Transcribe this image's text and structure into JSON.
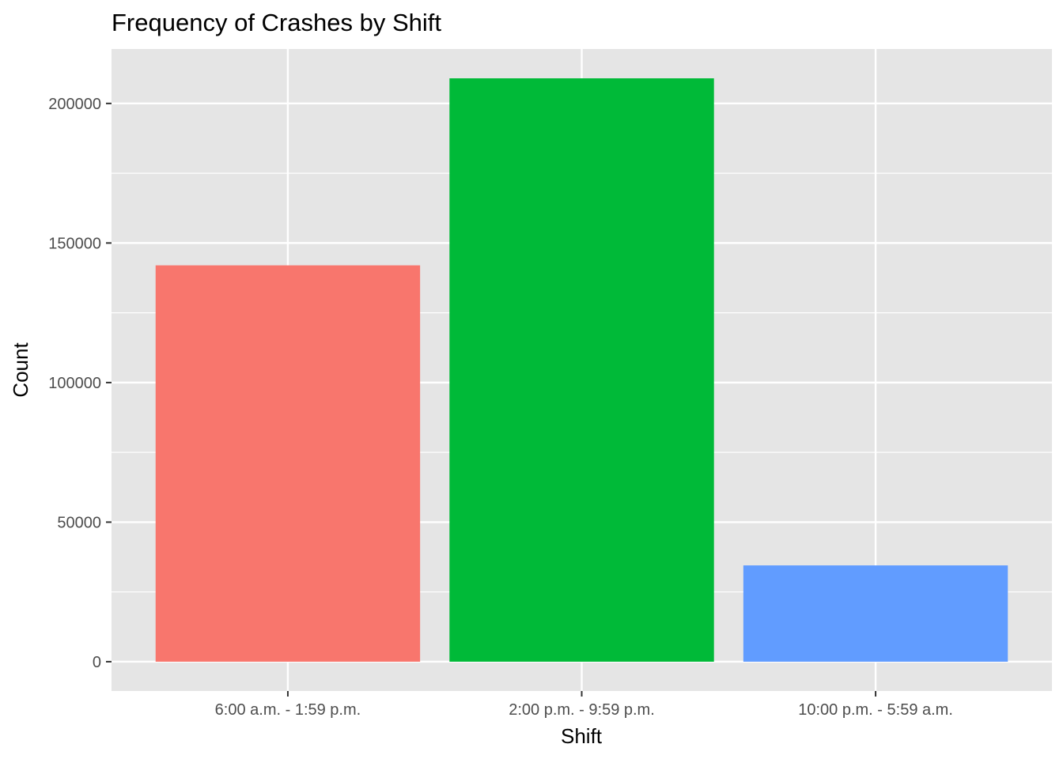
{
  "chart_data": {
    "type": "bar",
    "title": "Frequency of Crashes by Shift",
    "xlabel": "Shift",
    "ylabel": "Count",
    "categories": [
      "6:00 a.m. - 1:59 p.m.",
      "2:00 p.m. - 9:59 p.m.",
      "10:00 p.m. - 5:59 a.m."
    ],
    "values": [
      142000,
      209000,
      34500
    ],
    "colors": [
      "#F8766D",
      "#00BA38",
      "#619CFF"
    ],
    "ylim": [
      -10500,
      219500
    ],
    "yticks": [
      0,
      50000,
      100000,
      150000,
      200000
    ],
    "ytick_labels": [
      "0",
      "50000",
      "100000",
      "150000",
      "200000"
    ],
    "grid": true,
    "legend": "none",
    "panel_background": "#E5E5E5",
    "gridline_color": "#FFFFFF"
  }
}
